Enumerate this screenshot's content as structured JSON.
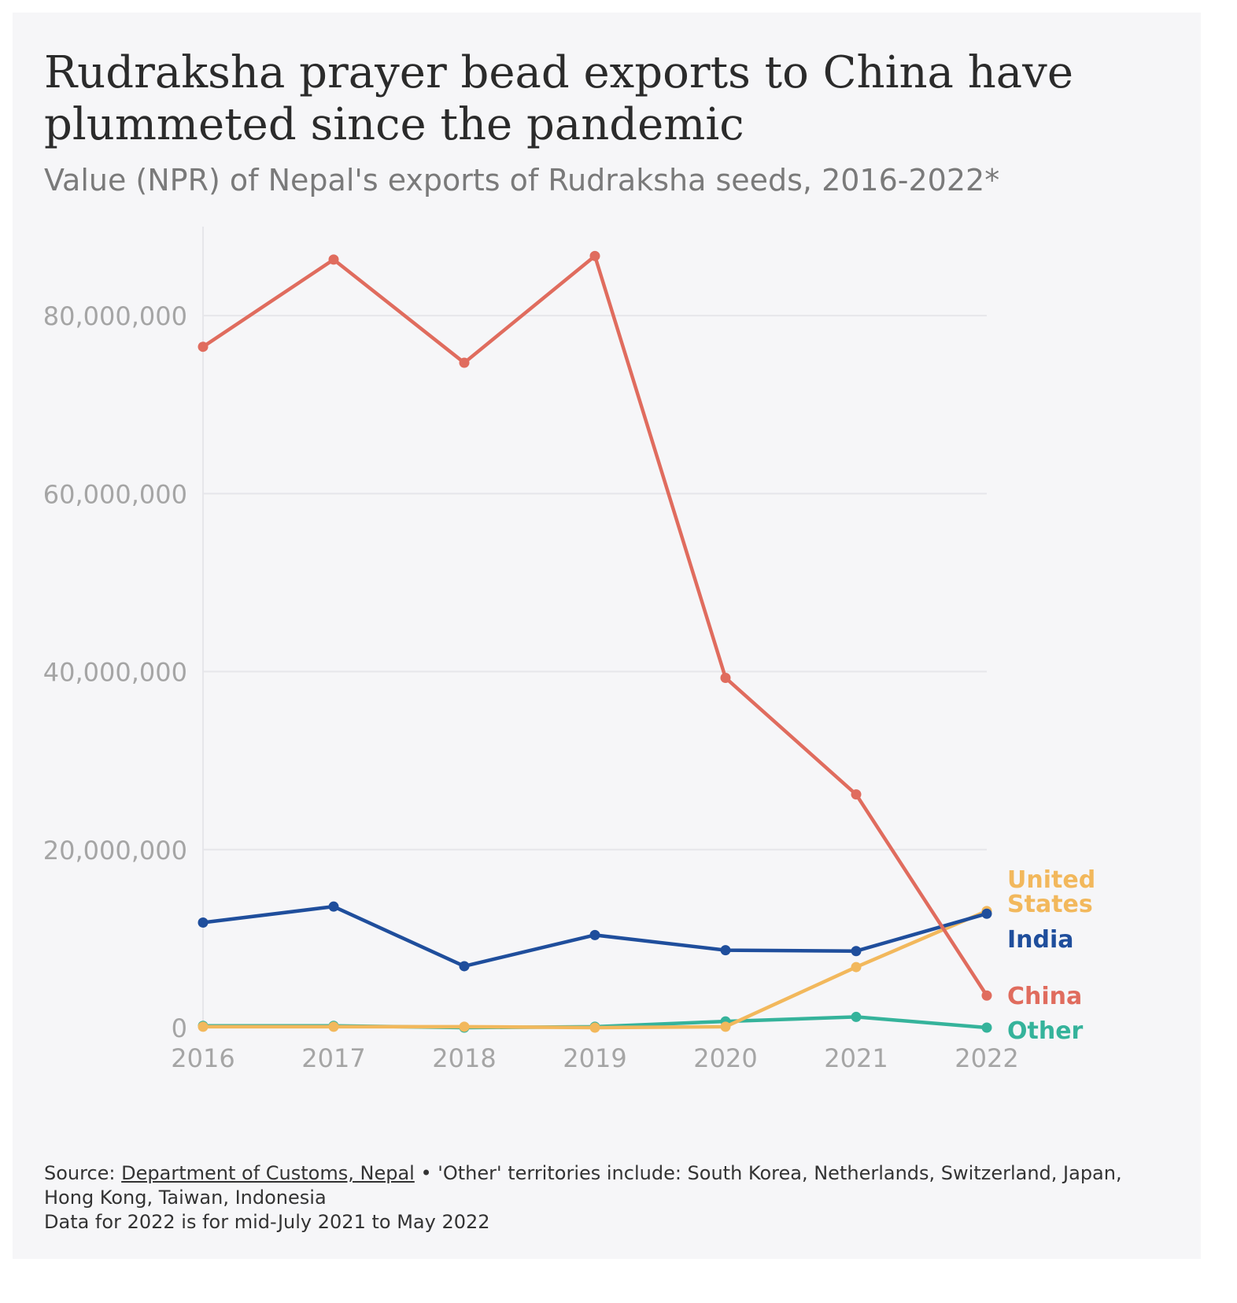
{
  "title": "Rudraksha prayer bead exports to China have plummeted since the pandemic",
  "subtitle": "Value (NPR) of Nepal's exports of Rudraksha seeds, 2016-2022*",
  "footer": {
    "source_prefix": "Source: ",
    "source_link": "Department of Customs, Nepal",
    "source_rest": " • 'Other' territories include: South Korea, Netherlands, Switzerland, Japan, Hong Kong, Taiwan, Indonesia",
    "note": "Data for 2022 is for mid-July 2021 to May 2022"
  },
  "chart_data": {
    "type": "line",
    "x": [
      "2016",
      "2017",
      "2018",
      "2019",
      "2020",
      "2021",
      "2022"
    ],
    "yticks": [
      0,
      20000000,
      40000000,
      60000000,
      80000000
    ],
    "ytick_labels": [
      "0",
      "20,000,000",
      "40,000,000",
      "60,000,000",
      "80,000,000"
    ],
    "ylim": [
      0,
      90000000
    ],
    "grid": true,
    "legend": "direct labels at line ends",
    "series": [
      {
        "name": "China",
        "color": "#e06c5e",
        "values": [
          76500000,
          86300000,
          74700000,
          86700000,
          39300000,
          26200000,
          3600000
        ]
      },
      {
        "name": "India",
        "color": "#1f4e9c",
        "values": [
          11800000,
          13600000,
          6900000,
          10400000,
          8700000,
          8600000,
          12800000
        ]
      },
      {
        "name": "United States",
        "color": "#f2b85c",
        "values": [
          100000,
          100000,
          100000,
          0,
          100000,
          6800000,
          13100000
        ]
      },
      {
        "name": "Other",
        "color": "#35b39b",
        "values": [
          200000,
          200000,
          0,
          100000,
          700000,
          1200000,
          0
        ]
      }
    ]
  }
}
